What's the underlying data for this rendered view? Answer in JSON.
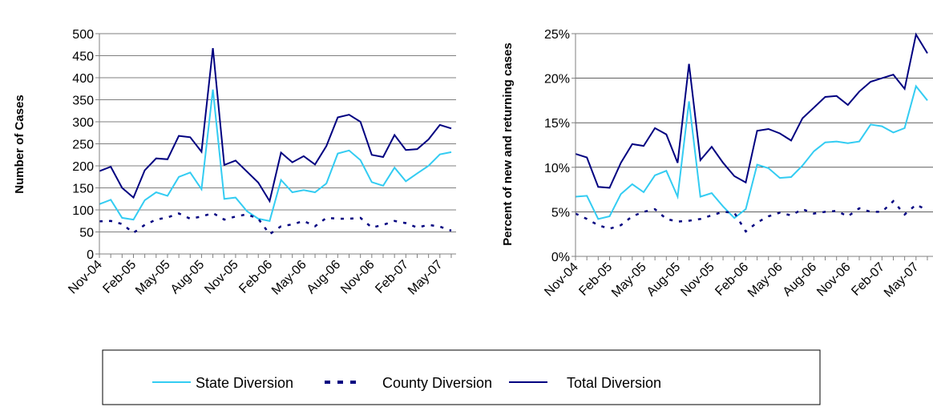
{
  "chart_data": [
    {
      "type": "line",
      "y_label": "Number of Cases",
      "categories": [
        "Nov-04",
        null,
        null,
        "Feb-05",
        null,
        null,
        "May-05",
        null,
        null,
        "Aug-05",
        null,
        null,
        "Nov-05",
        null,
        null,
        "Feb-06",
        null,
        null,
        "May-06",
        null,
        null,
        "Aug-06",
        null,
        null,
        "Nov-06",
        null,
        null,
        "Feb-07",
        null,
        null,
        "May-07",
        null
      ],
      "series": [
        {
          "name": "State Diversion",
          "color": "#33ccf2",
          "dash": false,
          "values": [
            113,
            123,
            82,
            78,
            122,
            140,
            132,
            175,
            185,
            147,
            373,
            125,
            128,
            97,
            80,
            75,
            168,
            140,
            145,
            140,
            160,
            228,
            235,
            213,
            163,
            155,
            196,
            165,
            183,
            200,
            226,
            231
          ]
        },
        {
          "name": "County Diversion",
          "color": "#000080",
          "dash": true,
          "values": [
            74,
            75,
            68,
            48,
            66,
            78,
            83,
            92,
            80,
            85,
            93,
            78,
            85,
            90,
            80,
            45,
            63,
            67,
            75,
            63,
            82,
            80,
            80,
            82,
            60,
            66,
            75,
            70,
            60,
            66,
            62,
            53
          ]
        },
        {
          "name": "Total Diversion",
          "color": "#000080",
          "dash": false,
          "values": [
            188,
            198,
            150,
            128,
            190,
            217,
            215,
            268,
            265,
            232,
            467,
            202,
            212,
            187,
            162,
            120,
            230,
            208,
            222,
            203,
            245,
            310,
            316,
            300,
            225,
            220,
            270,
            236,
            238,
            260,
            293,
            285
          ]
        }
      ],
      "ylim": [
        0,
        500
      ],
      "yticks": [
        0,
        50,
        100,
        150,
        200,
        250,
        300,
        350,
        400,
        450,
        500
      ],
      "grid": true
    },
    {
      "type": "line",
      "y_label": "Percent of new and returning cases",
      "categories": [
        "Nov-04",
        null,
        null,
        "Feb-05",
        null,
        null,
        "May-05",
        null,
        null,
        "Aug-05",
        null,
        null,
        "Nov-05",
        null,
        null,
        "Feb-06",
        null,
        null,
        "May-06",
        null,
        null,
        "Aug-06",
        null,
        null,
        "Nov-06",
        null,
        null,
        "Feb-07",
        null,
        null,
        "May-07",
        null
      ],
      "series": [
        {
          "color": "#33ccf2",
          "dash": false,
          "values": [
            6.7,
            6.8,
            4.2,
            4.5,
            7.0,
            8.1,
            7.2,
            9.1,
            9.6,
            6.7,
            17.4,
            6.7,
            7.1,
            5.6,
            4.3,
            5.3,
            10.3,
            9.9,
            8.8,
            8.9,
            10.2,
            11.8,
            12.8,
            12.9,
            12.7,
            12.9,
            14.8,
            14.6,
            13.9,
            14.4,
            19.1,
            17.5
          ]
        },
        {
          "color": "#000080",
          "dash": true,
          "values": [
            4.8,
            4.2,
            3.5,
            3.1,
            3.5,
            4.5,
            5.0,
            5.3,
            4.2,
            3.9,
            4.0,
            4.2,
            4.6,
            5.0,
            4.9,
            2.8,
            3.8,
            4.5,
            4.9,
            4.6,
            5.3,
            4.8,
            5.0,
            5.1,
            4.5,
            5.4,
            5.0,
            5.0,
            6.2,
            4.7,
            5.8,
            5.2
          ]
        },
        {
          "color": "#000080",
          "dash": false,
          "values": [
            11.5,
            11.1,
            7.8,
            7.7,
            10.5,
            12.6,
            12.4,
            14.4,
            13.7,
            10.5,
            21.6,
            10.8,
            12.3,
            10.5,
            9.0,
            8.3,
            14.1,
            14.3,
            13.8,
            13.0,
            15.5,
            16.7,
            17.9,
            18.0,
            17.0,
            18.5,
            19.6,
            20.0,
            20.4,
            18.8,
            24.9,
            22.8
          ]
        }
      ],
      "ylim": [
        0,
        25
      ],
      "yticks": [
        {
          "value": 0,
          "label": "0%"
        },
        {
          "value": 5,
          "label": "5%"
        },
        {
          "value": 10,
          "label": "10%"
        },
        {
          "value": 15,
          "label": "15%"
        },
        {
          "value": 20,
          "label": "20%"
        },
        {
          "value": 25,
          "label": "25%"
        }
      ],
      "grid": true
    }
  ]
}
